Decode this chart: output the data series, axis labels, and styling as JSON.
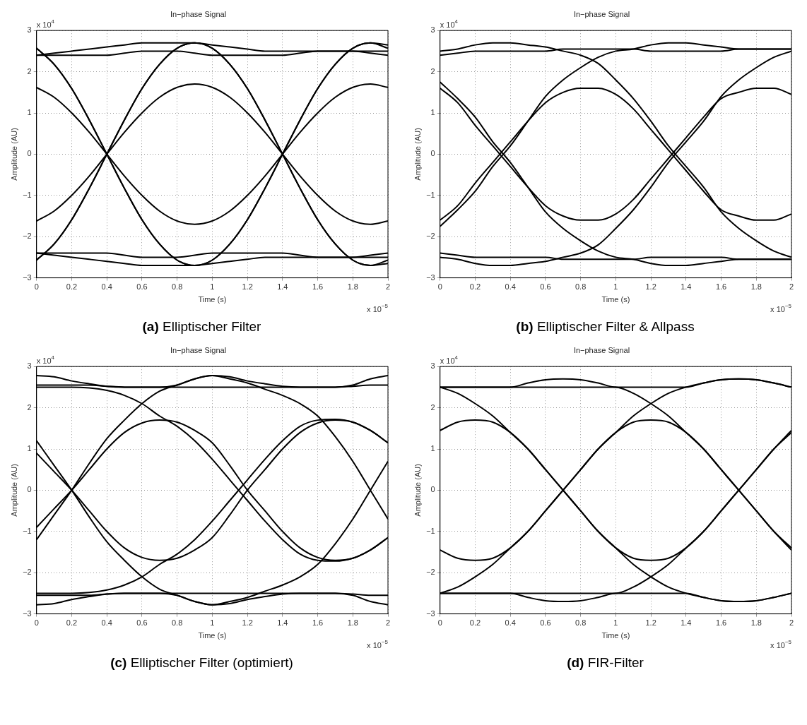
{
  "chart_data": [
    {
      "type": "line",
      "title": "In−phase Signal",
      "subtitle": "(a) Elliptischer Filter",
      "xlabel": "Time (s)",
      "ylabel": "Amplitude (AU)",
      "annotations": [
        "x 10$^{4}$",
        "x 10$^{−5}$"
      ],
      "grid": true,
      "legend": false,
      "marker": "none",
      "line_style": "solid",
      "x": [
        0,
        0.1,
        0.2,
        0.3,
        0.4,
        0.5,
        0.6,
        0.7,
        0.8,
        0.9,
        1,
        1.1,
        1.2,
        1.3,
        1.4,
        1.5,
        1.6,
        1.7,
        1.8,
        1.9,
        2
      ],
      "xlim": [
        0,
        2
      ],
      "xticks": [
        0,
        0.2,
        0.4,
        0.6,
        0.8,
        1,
        1.2,
        1.4,
        1.6,
        1.8,
        2
      ],
      "ylim": [
        -3,
        3
      ],
      "yticks": [
        -3,
        -2,
        -1,
        0,
        1,
        2,
        3
      ],
      "series": [
        {
          "color": "#000000",
          "values": [
            -2.57,
            -2.18,
            -1.59,
            -0.83,
            0,
            0.83,
            1.59,
            2.18,
            2.57,
            2.7,
            2.57,
            2.18,
            1.59,
            0.83,
            0,
            -0.83,
            -1.59,
            -2.18,
            -2.57,
            -2.7,
            -2.57
          ]
        },
        {
          "color": "#000000",
          "values": [
            2.57,
            2.18,
            1.59,
            0.83,
            0,
            -0.83,
            -1.59,
            -2.18,
            -2.57,
            -2.7,
            -2.57,
            -2.18,
            -1.59,
            -0.83,
            0,
            0.83,
            1.59,
            2.18,
            2.57,
            2.7,
            2.57
          ]
        },
        {
          "color": "#000000",
          "values": [
            -1.62,
            -1.38,
            -1,
            -0.53,
            0,
            0.53,
            1,
            1.38,
            1.62,
            1.7,
            1.62,
            1.38,
            1,
            0.53,
            0,
            -0.53,
            -1,
            -1.38,
            -1.62,
            -1.7,
            -1.62
          ]
        },
        {
          "color": "#000000",
          "values": [
            1.62,
            1.38,
            1,
            0.53,
            0,
            -0.53,
            -1,
            -1.38,
            -1.62,
            -1.7,
            -1.62,
            -1.38,
            -1,
            -0.53,
            0,
            0.53,
            1,
            1.38,
            1.62,
            1.7,
            1.62
          ]
        },
        {
          "color": "#000000",
          "values": [
            -2.57,
            -2.18,
            -1.59,
            -0.83,
            0,
            0.83,
            1.59,
            2.18,
            2.57,
            2.7,
            2.65,
            2.6,
            2.55,
            2.5,
            2.5,
            2.5,
            2.5,
            2.5,
            2.5,
            2.5,
            2.5
          ]
        },
        {
          "color": "#000000",
          "values": [
            2.57,
            2.18,
            1.59,
            0.83,
            0,
            -0.83,
            -1.59,
            -2.18,
            -2.57,
            -2.7,
            -2.65,
            -2.6,
            -2.55,
            -2.5,
            -2.5,
            -2.5,
            -2.5,
            -2.5,
            -2.5,
            -2.5,
            -2.5
          ]
        },
        {
          "color": "#000000",
          "values": [
            2.4,
            2.45,
            2.5,
            2.55,
            2.6,
            2.65,
            2.7,
            2.7,
            2.7,
            2.7,
            2.57,
            2.18,
            1.59,
            0.83,
            0,
            -0.83,
            -1.59,
            -2.18,
            -2.57,
            -2.7,
            -2.65
          ]
        },
        {
          "color": "#000000",
          "values": [
            -2.4,
            -2.45,
            -2.5,
            -2.55,
            -2.6,
            -2.65,
            -2.7,
            -2.7,
            -2.7,
            -2.7,
            -2.57,
            -2.18,
            -1.59,
            -0.83,
            0,
            0.83,
            1.59,
            2.18,
            2.57,
            2.7,
            2.65
          ]
        },
        {
          "color": "#000000",
          "values": [
            2.4,
            2.4,
            2.4,
            2.4,
            2.4,
            2.45,
            2.5,
            2.5,
            2.5,
            2.45,
            2.4,
            2.4,
            2.4,
            2.4,
            2.4,
            2.45,
            2.5,
            2.5,
            2.5,
            2.45,
            2.4
          ]
        },
        {
          "color": "#000000",
          "values": [
            -2.4,
            -2.4,
            -2.4,
            -2.4,
            -2.4,
            -2.45,
            -2.5,
            -2.5,
            -2.5,
            -2.45,
            -2.4,
            -2.4,
            -2.4,
            -2.4,
            -2.4,
            -2.45,
            -2.5,
            -2.5,
            -2.5,
            -2.45,
            -2.4
          ]
        }
      ]
    },
    {
      "type": "line",
      "title": "In−phase Signal",
      "subtitle": "(b) Elliptischer Filter & Allpass",
      "xlabel": "Time (s)",
      "ylabel": "Amplitude (AU)",
      "annotations": [
        "x 10$^{4}$",
        "x 10$^{−5}$"
      ],
      "grid": true,
      "legend": false,
      "marker": "none",
      "line_style": "solid",
      "x": [
        0,
        0.1,
        0.2,
        0.3,
        0.4,
        0.5,
        0.6,
        0.7,
        0.8,
        0.9,
        1,
        1.1,
        1.2,
        1.3,
        1.4,
        1.5,
        1.6,
        1.7,
        1.8,
        1.9,
        2
      ],
      "xlim": [
        0,
        2
      ],
      "xticks": [
        0,
        0.2,
        0.4,
        0.6,
        0.8,
        1,
        1.2,
        1.4,
        1.6,
        1.8,
        2
      ],
      "ylim": [
        -3,
        3
      ],
      "yticks": [
        -3,
        -2,
        -1,
        0,
        1,
        2,
        3
      ],
      "series": [
        {
          "color": "#000000",
          "values": [
            1.6,
            1.25,
            0.7,
            0.2,
            -0.3,
            -0.8,
            -1.25,
            -1.5,
            -1.6,
            -1.6,
            -1.45,
            -1.1,
            -0.6,
            -0.1,
            0.4,
            0.9,
            1.35,
            1.5,
            1.6,
            1.6,
            1.45
          ]
        },
        {
          "color": "#000000",
          "values": [
            -1.6,
            -1.25,
            -0.7,
            -0.2,
            0.3,
            0.8,
            1.25,
            1.5,
            1.6,
            1.6,
            1.45,
            1.1,
            0.6,
            0.1,
            -0.4,
            -0.9,
            -1.35,
            -1.5,
            -1.6,
            -1.6,
            -1.45
          ]
        },
        {
          "color": "#000000",
          "values": [
            1.75,
            1.35,
            0.9,
            0.3,
            -0.2,
            -0.8,
            -1.4,
            -1.8,
            -2.1,
            -2.35,
            -2.5,
            -2.55,
            -2.65,
            -2.7,
            -2.7,
            -2.65,
            -2.6,
            -2.55,
            -2.55,
            -2.55,
            -2.55
          ]
        },
        {
          "color": "#000000",
          "values": [
            -1.75,
            -1.35,
            -0.9,
            -0.3,
            0.2,
            0.8,
            1.4,
            1.8,
            2.1,
            2.35,
            2.5,
            2.55,
            2.65,
            2.7,
            2.7,
            2.65,
            2.6,
            2.55,
            2.55,
            2.55,
            2.55
          ]
        },
        {
          "color": "#000000",
          "values": [
            2.5,
            2.55,
            2.65,
            2.7,
            2.7,
            2.65,
            2.6,
            2.5,
            2.4,
            2.2,
            1.8,
            1.35,
            0.8,
            0.2,
            -0.3,
            -0.8,
            -1.4,
            -1.8,
            -2.1,
            -2.35,
            -2.5
          ]
        },
        {
          "color": "#000000",
          "values": [
            -2.5,
            -2.55,
            -2.65,
            -2.7,
            -2.7,
            -2.65,
            -2.6,
            -2.5,
            -2.4,
            -2.2,
            -1.8,
            -1.35,
            -0.8,
            -0.2,
            0.3,
            0.8,
            1.4,
            1.8,
            2.1,
            2.35,
            2.5
          ]
        },
        {
          "color": "#000000",
          "values": [
            2.4,
            2.45,
            2.5,
            2.5,
            2.5,
            2.5,
            2.5,
            2.55,
            2.55,
            2.55,
            2.55,
            2.55,
            2.5,
            2.5,
            2.5,
            2.5,
            2.5,
            2.55,
            2.55,
            2.55,
            2.55
          ]
        },
        {
          "color": "#000000",
          "values": [
            -2.4,
            -2.45,
            -2.5,
            -2.5,
            -2.5,
            -2.5,
            -2.5,
            -2.55,
            -2.55,
            -2.55,
            -2.55,
            -2.55,
            -2.5,
            -2.5,
            -2.5,
            -2.5,
            -2.5,
            -2.55,
            -2.55,
            -2.55,
            -2.55
          ]
        }
      ]
    },
    {
      "type": "line",
      "title": "In−phase Signal",
      "subtitle": "(c) Elliptischer Filter (optimiert)",
      "xlabel": "Time (s)",
      "ylabel": "Amplitude (AU)",
      "annotations": [
        "x 10$^{4}$",
        "x 10$^{−5}$"
      ],
      "grid": true,
      "legend": false,
      "marker": "none",
      "line_style": "solid",
      "x": [
        0,
        0.1,
        0.2,
        0.3,
        0.4,
        0.5,
        0.6,
        0.7,
        0.8,
        0.9,
        1,
        1.1,
        1.2,
        1.3,
        1.4,
        1.5,
        1.6,
        1.7,
        1.8,
        1.9,
        2
      ],
      "xlim": [
        0,
        2
      ],
      "xticks": [
        0,
        0.2,
        0.4,
        0.6,
        0.8,
        1,
        1.2,
        1.4,
        1.6,
        1.8,
        2
      ],
      "ylim": [
        -3,
        3
      ],
      "yticks": [
        -3,
        -2,
        -1,
        0,
        1,
        2,
        3
      ],
      "series": [
        {
          "color": "#000000",
          "values": [
            -1.2,
            -0.6,
            0,
            0.65,
            1.25,
            1.7,
            2.1,
            2.4,
            2.55,
            2.7,
            2.78,
            2.75,
            2.65,
            2.58,
            2.52,
            2.5,
            2.5,
            2.5,
            2.55,
            2.7,
            2.78
          ]
        },
        {
          "color": "#000000",
          "values": [
            1.2,
            0.6,
            0,
            -0.65,
            -1.25,
            -1.7,
            -2.1,
            -2.4,
            -2.55,
            -2.7,
            -2.78,
            -2.75,
            -2.65,
            -2.58,
            -2.52,
            -2.5,
            -2.5,
            -2.5,
            -2.55,
            -2.7,
            -2.78
          ]
        },
        {
          "color": "#000000",
          "values": [
            -0.9,
            -0.45,
            0,
            0.5,
            1,
            1.4,
            1.63,
            1.7,
            1.65,
            1.45,
            1.15,
            0.6,
            0,
            -0.5,
            -1,
            -1.4,
            -1.63,
            -1.7,
            -1.65,
            -1.45,
            -1.15
          ]
        },
        {
          "color": "#000000",
          "values": [
            0.9,
            0.45,
            0,
            -0.5,
            -1,
            -1.4,
            -1.63,
            -1.7,
            -1.65,
            -1.45,
            -1.15,
            -0.6,
            0,
            0.5,
            1,
            1.4,
            1.63,
            1.7,
            1.65,
            1.45,
            1.15
          ]
        },
        {
          "color": "#000000",
          "values": [
            2.78,
            2.75,
            2.65,
            2.58,
            2.52,
            2.5,
            2.5,
            2.5,
            2.55,
            2.7,
            2.78,
            2.7,
            2.6,
            2.45,
            2.3,
            2.1,
            1.8,
            1.3,
            0.7,
            0,
            -0.7
          ]
        },
        {
          "color": "#000000",
          "values": [
            -2.78,
            -2.75,
            -2.65,
            -2.58,
            -2.52,
            -2.5,
            -2.5,
            -2.5,
            -2.55,
            -2.7,
            -2.78,
            -2.7,
            -2.6,
            -2.45,
            -2.3,
            -2.1,
            -1.8,
            -1.3,
            -0.7,
            0,
            0.7
          ]
        },
        {
          "color": "#000000",
          "values": [
            2.5,
            2.5,
            2.5,
            2.48,
            2.42,
            2.3,
            2.1,
            1.8,
            1.55,
            1.2,
            0.75,
            0.25,
            -0.25,
            -0.75,
            -1.2,
            -1.55,
            -1.7,
            -1.72,
            -1.65,
            -1.45,
            -1.15
          ]
        },
        {
          "color": "#000000",
          "values": [
            -2.5,
            -2.5,
            -2.5,
            -2.48,
            -2.42,
            -2.3,
            -2.1,
            -1.8,
            -1.55,
            -1.2,
            -0.75,
            -0.25,
            0.25,
            0.75,
            1.2,
            1.55,
            1.7,
            1.72,
            1.65,
            1.45,
            1.15
          ]
        },
        {
          "color": "#000000",
          "values": [
            2.55,
            2.55,
            2.55,
            2.55,
            2.52,
            2.5,
            2.5,
            2.5,
            2.5,
            2.5,
            2.5,
            2.5,
            2.5,
            2.5,
            2.5,
            2.5,
            2.5,
            2.5,
            2.52,
            2.55,
            2.55
          ]
        },
        {
          "color": "#000000",
          "values": [
            -2.55,
            -2.55,
            -2.55,
            -2.55,
            -2.52,
            -2.5,
            -2.5,
            -2.5,
            -2.5,
            -2.5,
            -2.5,
            -2.5,
            -2.5,
            -2.5,
            -2.5,
            -2.5,
            -2.5,
            -2.5,
            -2.52,
            -2.55,
            -2.55
          ]
        }
      ]
    },
    {
      "type": "line",
      "title": "In−phase Signal",
      "subtitle": "(d) FIR-Filter",
      "xlabel": "Time (s)",
      "ylabel": "Amplitude (AU)",
      "annotations": [
        "x 10$^{4}$",
        "x 10$^{−5}$"
      ],
      "grid": true,
      "legend": false,
      "marker": "none",
      "line_style": "solid",
      "x": [
        0,
        0.1,
        0.2,
        0.3,
        0.4,
        0.5,
        0.6,
        0.7,
        0.8,
        0.9,
        1,
        1.1,
        1.2,
        1.3,
        1.4,
        1.5,
        1.6,
        1.7,
        1.8,
        1.9,
        2
      ],
      "xlim": [
        0,
        2
      ],
      "xticks": [
        0,
        0.2,
        0.4,
        0.6,
        0.8,
        1,
        1.2,
        1.4,
        1.6,
        1.8,
        2
      ],
      "ylim": [
        -3,
        3
      ],
      "yticks": [
        -3,
        -2,
        -1,
        0,
        1,
        2,
        3
      ],
      "series": [
        {
          "color": "#000000",
          "values": [
            2.5,
            2.35,
            2.1,
            1.8,
            1.4,
            1,
            0.5,
            0,
            -0.5,
            -1,
            -1.4,
            -1.8,
            -2.1,
            -2.35,
            -2.5,
            -2.6,
            -2.68,
            -2.7,
            -2.68,
            -2.6,
            -2.5
          ]
        },
        {
          "color": "#000000",
          "values": [
            -2.5,
            -2.35,
            -2.1,
            -1.8,
            -1.4,
            -1,
            -0.5,
            0,
            0.5,
            1,
            1.4,
            1.8,
            2.1,
            2.35,
            2.5,
            2.6,
            2.68,
            2.7,
            2.68,
            2.6,
            2.5
          ]
        },
        {
          "color": "#000000",
          "values": [
            1.45,
            1.65,
            1.7,
            1.65,
            1.4,
            1,
            0.5,
            0,
            -0.5,
            -1,
            -1.4,
            -1.65,
            -1.7,
            -1.65,
            -1.4,
            -1,
            -0.5,
            0,
            0.5,
            1,
            1.45
          ]
        },
        {
          "color": "#000000",
          "values": [
            -1.45,
            -1.65,
            -1.7,
            -1.65,
            -1.4,
            -1,
            -0.5,
            0,
            0.5,
            1,
            1.4,
            1.65,
            1.7,
            1.65,
            1.4,
            1,
            0.5,
            0,
            -0.5,
            -1,
            -1.45
          ]
        },
        {
          "color": "#000000",
          "values": [
            2.5,
            2.5,
            2.5,
            2.5,
            2.5,
            2.6,
            2.68,
            2.7,
            2.68,
            2.6,
            2.5,
            2.5,
            2.5,
            2.5,
            2.5,
            2.6,
            2.68,
            2.7,
            2.68,
            2.6,
            2.5
          ]
        },
        {
          "color": "#000000",
          "values": [
            -2.5,
            -2.5,
            -2.5,
            -2.5,
            -2.5,
            -2.6,
            -2.68,
            -2.7,
            -2.68,
            -2.6,
            -2.5,
            -2.5,
            -2.5,
            -2.5,
            -2.5,
            -2.6,
            -2.68,
            -2.7,
            -2.68,
            -2.6,
            -2.5
          ]
        },
        {
          "color": "#000000",
          "values": [
            2.5,
            2.5,
            2.5,
            2.5,
            2.5,
            2.5,
            2.5,
            2.5,
            2.5,
            2.5,
            2.5,
            2.35,
            2.1,
            1.8,
            1.4,
            1,
            0.5,
            0,
            -0.5,
            -1,
            -1.4
          ]
        },
        {
          "color": "#000000",
          "values": [
            -2.5,
            -2.5,
            -2.5,
            -2.5,
            -2.5,
            -2.5,
            -2.5,
            -2.5,
            -2.5,
            -2.5,
            -2.5,
            -2.35,
            -2.1,
            -1.8,
            -1.4,
            -1,
            -0.5,
            0,
            0.5,
            1,
            1.4
          ]
        }
      ]
    }
  ]
}
